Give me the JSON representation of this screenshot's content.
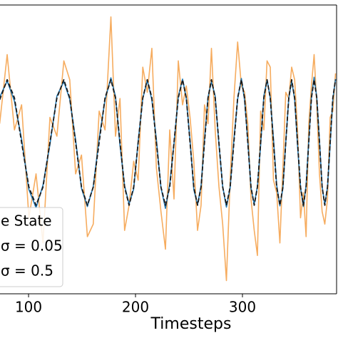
{
  "chart_data": {
    "type": "line",
    "xlabel": "Timesteps",
    "xlim": [
      73.3,
      388
    ],
    "ylim": [
      -2.41,
      2.19
    ],
    "xticks": [
      100,
      200,
      300
    ],
    "legend": "lower left",
    "x": [
      73,
      80,
      86.8,
      93.5,
      100.3,
      107,
      113.5,
      120,
      126.5,
      133,
      138.5,
      144,
      149.5,
      155,
      160.5,
      166,
      171.5,
      177,
      181.3,
      185.5,
      189.8,
      194,
      198.3,
      202.5,
      206.8,
      211,
      215.3,
      219.5,
      223.8,
      228,
      232,
      236,
      240,
      244,
      247.5,
      251,
      254.5,
      258,
      261.3,
      264.5,
      267.8,
      271,
      274.5,
      278,
      281.5,
      285,
      288.5,
      292,
      295.5,
      299,
      302,
      305,
      308,
      311,
      314,
      317,
      320,
      323,
      326,
      329,
      332,
      335,
      337.8,
      340.5,
      343.3,
      346,
      348.8,
      351.5,
      354.3,
      357,
      359.5,
      362,
      364.5,
      367,
      369.5,
      372,
      374.5,
      377,
      379.5,
      382,
      384.5,
      387
    ],
    "series": [
      {
        "name": "e State",
        "color": "#1a1a1a",
        "linestyle": "dashed",
        "values": [
          0.68,
          1,
          0.71,
          0,
          -0.71,
          -1,
          -0.71,
          0,
          0.71,
          1,
          0.71,
          0,
          -0.71,
          -1,
          -0.71,
          0,
          0.71,
          1,
          0.71,
          0,
          -0.71,
          -1,
          -0.71,
          0,
          0.71,
          1,
          0.71,
          0,
          -0.71,
          -1,
          -0.71,
          0,
          0.71,
          1,
          0.71,
          0,
          -0.71,
          -1,
          -0.71,
          0,
          0.71,
          1,
          0.71,
          0,
          -0.71,
          -1,
          -0.71,
          0,
          0.71,
          1,
          0.71,
          0,
          -0.71,
          -1,
          -0.71,
          0,
          0.71,
          1,
          0.71,
          0,
          -0.71,
          -1,
          -0.71,
          0,
          0.71,
          1,
          0.71,
          0,
          -0.71,
          -1,
          -0.71,
          0,
          0.71,
          1,
          0.71,
          0,
          -0.71,
          -1,
          -0.71,
          0,
          0.71,
          1
        ]
      },
      {
        "name": "σ = 0.05",
        "color": "#1f77b4",
        "linestyle": "solid",
        "values": [
          0.72,
          0.98,
          0.66,
          0.05,
          -0.75,
          -1.04,
          -0.68,
          -0.03,
          0.74,
          0.97,
          0.69,
          0.04,
          -0.73,
          -1.02,
          -0.7,
          0.06,
          0.68,
          1.03,
          0.73,
          -0.04,
          -0.69,
          -0.98,
          -0.74,
          0.02,
          0.7,
          0.99,
          0.68,
          0.05,
          -0.72,
          -1.05,
          -0.67,
          -0.02,
          0.73,
          1.01,
          0.7,
          0.03,
          -0.75,
          -0.99,
          -0.69,
          0.04,
          0.72,
          0.97,
          0.74,
          -0.03,
          -0.7,
          -1.03,
          -0.72,
          0.05,
          0.69,
          1.02,
          0.67,
          0.02,
          -0.73,
          -0.98,
          -0.7,
          -0.04,
          0.74,
          1.0,
          0.71,
          0.06,
          -0.68,
          -1.01,
          -0.73,
          0.01,
          0.7,
          0.98,
          0.69,
          -0.05,
          -0.72,
          -1.02,
          -0.68,
          0.03,
          0.73,
          1.04,
          0.72,
          0.02,
          -0.7,
          -0.99,
          -0.71,
          -0.03,
          0.69,
          1.01
        ]
      },
      {
        "name": "σ = 0.5",
        "color": "#f5a34e",
        "linestyle": "solid",
        "values": [
          0.3,
          1.4,
          0.2,
          0.6,
          -1.2,
          -0.5,
          -1.6,
          0.4,
          0.1,
          1.3,
          1.0,
          -0.5,
          -0.2,
          -1.5,
          -1.3,
          0.5,
          0.2,
          2.0,
          0.1,
          0.7,
          -1.4,
          -1.0,
          -0.3,
          -0.6,
          1.2,
          0.8,
          1.5,
          -0.4,
          -1.1,
          -1.7,
          0.2,
          -0.9,
          1.3,
          0.6,
          0.9,
          0.4,
          -0.3,
          -1.4,
          -1.0,
          0.6,
          0.3,
          1.5,
          0.2,
          -0.7,
          -1.3,
          -2.2,
          -0.6,
          0.7,
          1.6,
          0.9,
          0.8,
          0.3,
          -0.9,
          -1.4,
          -1.8,
          0.5,
          0.2,
          1.3,
          1.2,
          -0.6,
          -0.8,
          -1.6,
          -0.4,
          0.8,
          0.7,
          1.2,
          1.0,
          0.2,
          -1.2,
          -0.8,
          -1.5,
          0.3,
          0.9,
          1.4,
          0.6,
          -0.5,
          -1.1,
          -1.3,
          -0.9,
          0.4,
          0.5,
          1.1
        ]
      }
    ]
  }
}
